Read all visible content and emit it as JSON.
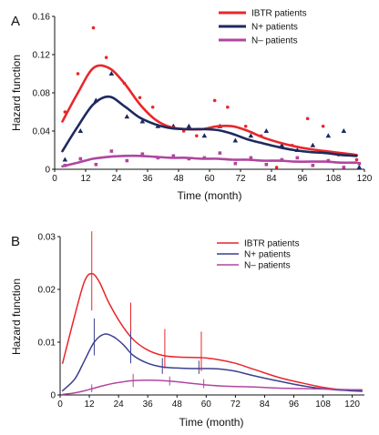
{
  "chart_data": [
    {
      "panel": "A",
      "type": "line",
      "xlabel": "Time (month)",
      "ylabel": "Hazard function",
      "xlim": [
        0,
        120
      ],
      "ylim": [
        0,
        0.16
      ],
      "xticks": [
        0,
        12,
        24,
        36,
        48,
        60,
        72,
        84,
        96,
        108,
        120
      ],
      "yticks": [
        0,
        0.04,
        0.08,
        0.12,
        0.16
      ],
      "ytick_labels": [
        "0",
        "0.04",
        "0.08",
        "0.12",
        "0.16"
      ],
      "legend_position": "top-right",
      "series": [
        {
          "name": "IBTR patients",
          "color": "#e8272a",
          "marker": "dot",
          "x": [
            3,
            9,
            15,
            21,
            27,
            33,
            39,
            45,
            51,
            57,
            63,
            69,
            75,
            81,
            87,
            93,
            99,
            105,
            111,
            117
          ],
          "y": [
            0.05,
            0.08,
            0.106,
            0.106,
            0.09,
            0.068,
            0.052,
            0.044,
            0.042,
            0.042,
            0.045,
            0.045,
            0.04,
            0.033,
            0.028,
            0.024,
            0.021,
            0.019,
            0.017,
            0.015
          ],
          "points_x": [
            4,
            9,
            15,
            20,
            27,
            33,
            38,
            43,
            50,
            55,
            62,
            67,
            74,
            80,
            86,
            92,
            98,
            104,
            110,
            117
          ],
          "points_y": [
            0.06,
            0.1,
            0.148,
            0.117,
            0.09,
            0.075,
            0.065,
            0.045,
            0.04,
            0.035,
            0.072,
            0.065,
            0.045,
            0.035,
            0.002,
            0.025,
            0.053,
            0.045,
            0.015,
            0.01
          ]
        },
        {
          "name": "N+ patients",
          "color": "#1e2a5e",
          "marker": "triangle",
          "x": [
            3,
            9,
            15,
            21,
            27,
            33,
            39,
            45,
            51,
            57,
            63,
            69,
            75,
            81,
            87,
            93,
            99,
            105,
            111,
            117
          ],
          "y": [
            0.019,
            0.045,
            0.068,
            0.076,
            0.066,
            0.054,
            0.047,
            0.043,
            0.042,
            0.042,
            0.041,
            0.037,
            0.031,
            0.027,
            0.023,
            0.02,
            0.018,
            0.017,
            0.015,
            0.014
          ],
          "points_x": [
            4,
            10,
            16,
            22,
            28,
            34,
            40,
            46,
            52,
            58,
            64,
            70,
            76,
            82,
            88,
            94,
            100,
            106,
            112,
            118
          ],
          "points_y": [
            0.01,
            0.04,
            0.072,
            0.1,
            0.055,
            0.05,
            0.045,
            0.045,
            0.045,
            0.035,
            0.045,
            0.03,
            0.035,
            0.04,
            0.025,
            0.02,
            0.025,
            0.035,
            0.04,
            0.002
          ]
        },
        {
          "name": "N– patients",
          "color": "#b0469f",
          "marker": "square",
          "x": [
            3,
            9,
            15,
            21,
            27,
            33,
            39,
            45,
            51,
            57,
            63,
            69,
            75,
            81,
            87,
            93,
            99,
            105,
            111,
            117
          ],
          "y": [
            0.003,
            0.007,
            0.011,
            0.013,
            0.014,
            0.014,
            0.013,
            0.012,
            0.012,
            0.011,
            0.011,
            0.01,
            0.01,
            0.009,
            0.009,
            0.008,
            0.008,
            0.008,
            0.007,
            0.007
          ],
          "points_x": [
            4,
            10,
            16,
            22,
            28,
            34,
            40,
            46,
            52,
            58,
            64,
            70,
            76,
            82,
            88,
            94,
            100,
            106,
            112,
            118
          ],
          "points_y": [
            0.004,
            0.011,
            0.005,
            0.019,
            0.009,
            0.016,
            0.012,
            0.014,
            0.011,
            0.012,
            0.017,
            0.006,
            0.012,
            0.005,
            0.01,
            0.012,
            0.004,
            0.009,
            0.002,
            0.006
          ]
        }
      ]
    },
    {
      "panel": "B",
      "type": "line",
      "xlabel": "Time (month)",
      "ylabel": "Hazard function",
      "xlim": [
        0,
        125
      ],
      "ylim": [
        0,
        0.03
      ],
      "xticks": [
        0,
        12,
        24,
        36,
        48,
        60,
        72,
        84,
        96,
        108,
        120
      ],
      "yticks": [
        0,
        0.01,
        0.02,
        0.03
      ],
      "ytick_labels": [
        "0",
        "0.01",
        "0.02",
        "0.03"
      ],
      "legend_position": "top-right",
      "series": [
        {
          "name": "IBTR patients",
          "color": "#e8272a",
          "x": [
            1,
            6,
            10,
            13,
            16,
            20,
            25,
            30,
            36,
            42,
            48,
            54,
            60,
            66,
            72,
            80,
            90,
            100,
            110,
            120,
            124
          ],
          "y": [
            0.006,
            0.015,
            0.0215,
            0.023,
            0.0215,
            0.0175,
            0.0135,
            0.0105,
            0.0085,
            0.0075,
            0.0072,
            0.0071,
            0.007,
            0.0066,
            0.006,
            0.0048,
            0.0033,
            0.0022,
            0.0013,
            0.0008,
            0.0007
          ],
          "error_x": [
            13,
            29,
            43,
            58
          ],
          "error_low": [
            0.016,
            0.006,
            0.005,
            0.0045
          ],
          "error_high": [
            0.031,
            0.0175,
            0.0125,
            0.012
          ]
        },
        {
          "name": "N+ patients",
          "color": "#3b3f8f",
          "x": [
            1,
            6,
            10,
            14,
            18,
            22,
            26,
            30,
            36,
            42,
            48,
            54,
            60,
            66,
            72,
            80,
            90,
            100,
            110,
            120,
            124
          ],
          "y": [
            0.0008,
            0.003,
            0.0065,
            0.01,
            0.0115,
            0.011,
            0.0095,
            0.0075,
            0.006,
            0.0053,
            0.0051,
            0.005,
            0.005,
            0.0049,
            0.0045,
            0.0036,
            0.0026,
            0.0017,
            0.0011,
            0.0008,
            0.0007
          ],
          "error_x": [
            14,
            29,
            42,
            57
          ],
          "error_low": [
            0.0075,
            0.006,
            0.004,
            0.004
          ],
          "error_high": [
            0.0145,
            0.012,
            0.007,
            0.0065
          ]
        },
        {
          "name": "N– patients",
          "color": "#b0469f",
          "x": [
            1,
            6,
            10,
            14,
            18,
            22,
            26,
            30,
            36,
            42,
            48,
            54,
            60,
            66,
            72,
            80,
            90,
            100,
            110,
            120,
            124
          ],
          "y": [
            0.0001,
            0.0004,
            0.0008,
            0.0013,
            0.0018,
            0.0022,
            0.0025,
            0.0027,
            0.0028,
            0.0027,
            0.0025,
            0.0022,
            0.0019,
            0.0017,
            0.0016,
            0.0015,
            0.0013,
            0.0012,
            0.0011,
            0.001,
            0.001
          ],
          "error_x": [
            13,
            30,
            45,
            59
          ],
          "error_low": [
            0.0005,
            0.0015,
            0.0018,
            0.0013
          ],
          "error_high": [
            0.002,
            0.004,
            0.0035,
            0.003
          ]
        }
      ]
    }
  ]
}
